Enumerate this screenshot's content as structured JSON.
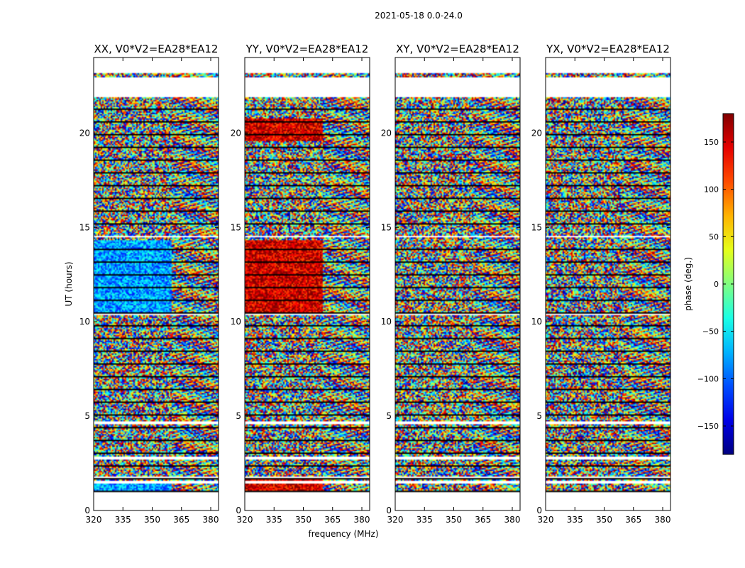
{
  "chart_data": {
    "type": "heatmap",
    "suptitle": "2021-05-18 0.0-24.0",
    "xlabel": "frequency (MHz)",
    "ylabel": "UT (hours)",
    "xlim": [
      320,
      384
    ],
    "ylim": [
      0,
      24
    ],
    "xticks": [
      320,
      335,
      350,
      365,
      380
    ],
    "yticks": [
      0,
      5,
      10,
      15,
      20
    ],
    "colorbar": {
      "label": "phase (deg.)",
      "range": [
        -180,
        180
      ],
      "ticks": [
        150,
        100,
        50,
        0,
        -50,
        -100,
        -150
      ],
      "colormap": "jet"
    },
    "panels": [
      {
        "title": "XX, V0*V2=EA28*EA12"
      },
      {
        "title": "YY, V0*V2=EA28*EA12"
      },
      {
        "title": "XY, V0*V2=EA28*EA12"
      },
      {
        "title": "YX, V0*V2=EA28*EA12"
      }
    ],
    "data_coverage_hours": [
      1.0,
      23.3
    ],
    "blank_gaps_hours": [
      [
        1.4,
        1.55
      ],
      [
        1.7,
        1.8
      ],
      [
        2.7,
        2.85
      ],
      [
        4.55,
        4.75
      ],
      [
        21.9,
        22.95
      ],
      [
        23.2,
        23.45
      ],
      [
        10.35,
        10.45
      ],
      [
        14.45,
        14.55
      ]
    ],
    "note": "Phase values are dense noise-like per-channel samples; rendered procedurally with the jet colormap."
  }
}
